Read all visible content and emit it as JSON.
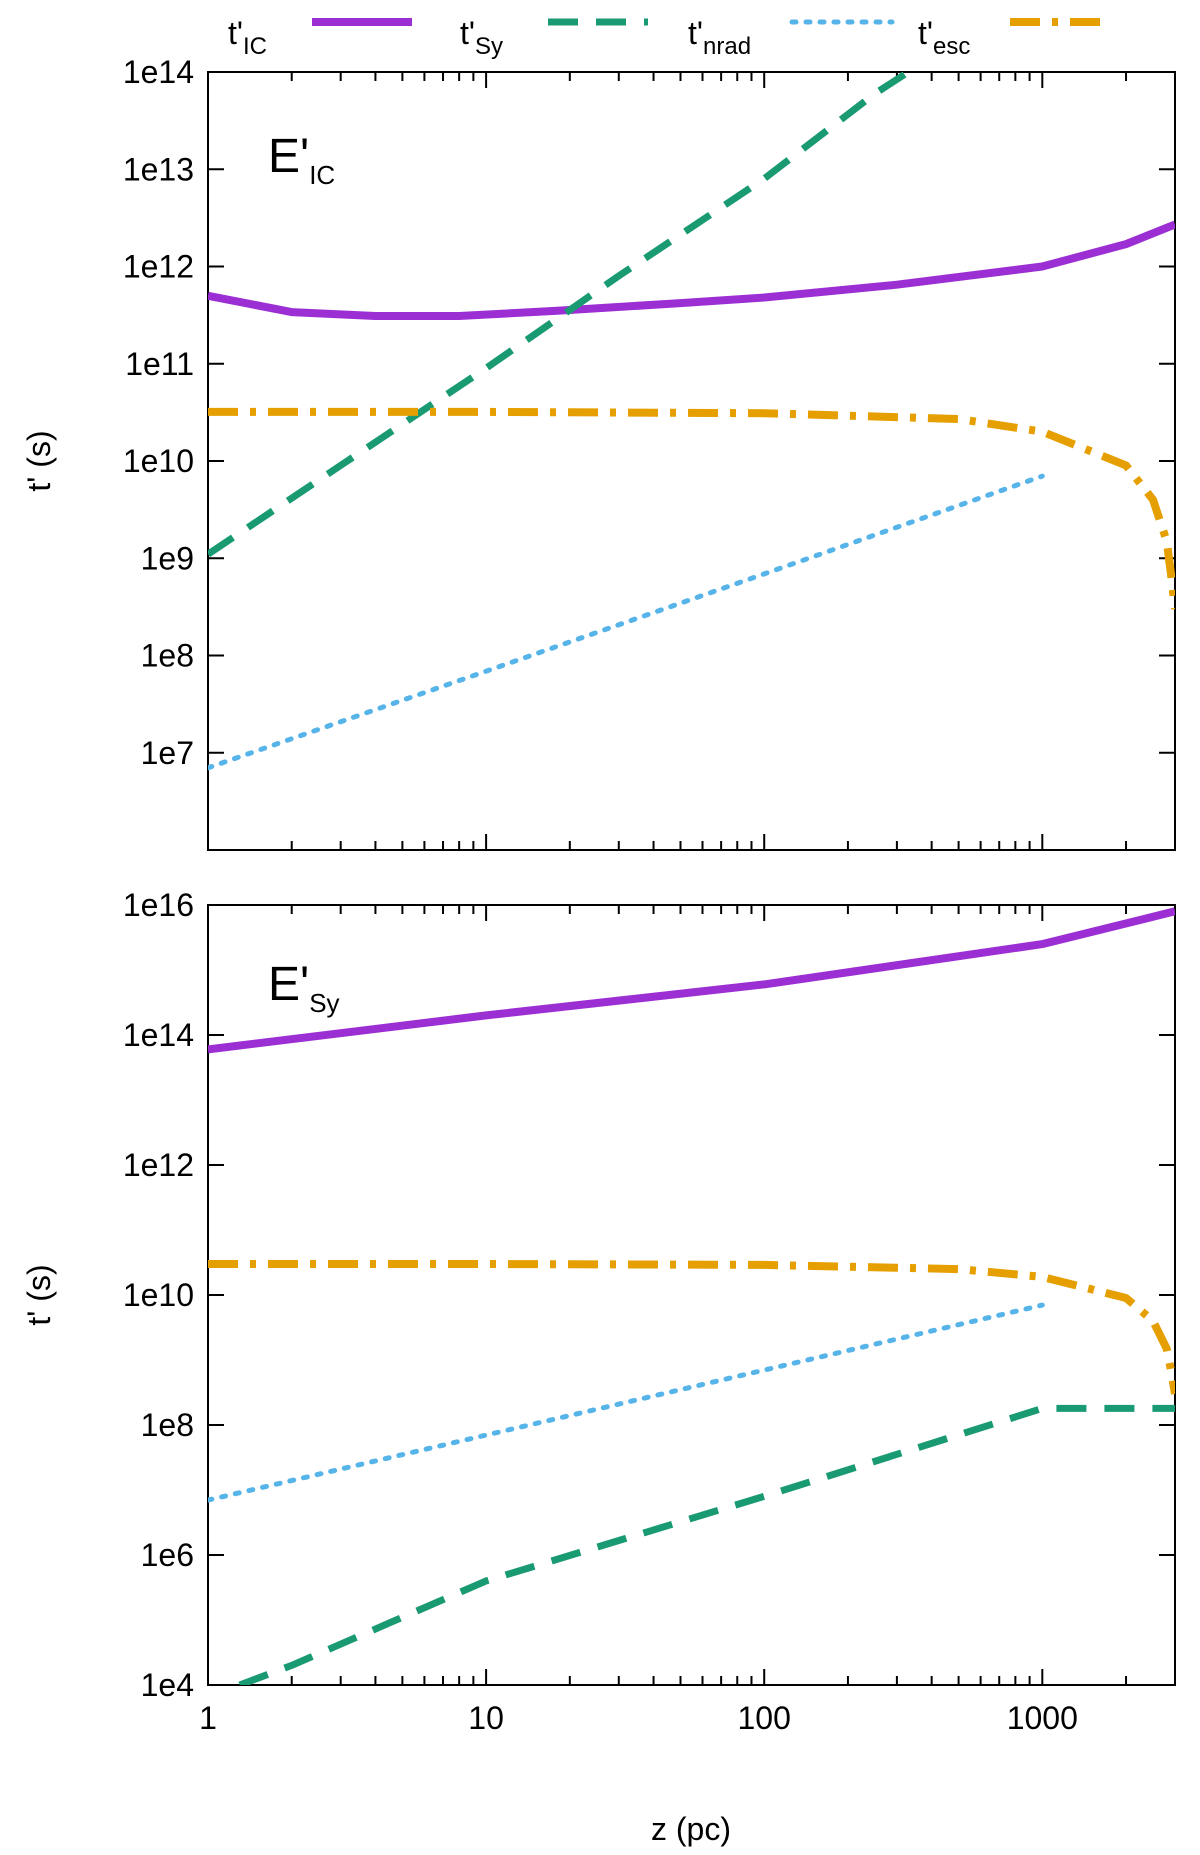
{
  "legend": {
    "placement": "top, outside plot area",
    "entries": [
      {
        "base": "t'",
        "sub": "IC",
        "style": "solid",
        "color": "#9b2fd4"
      },
      {
        "base": "t'",
        "sub": "Sy",
        "style": "dashed",
        "color": "#1a9a72"
      },
      {
        "base": "t'",
        "sub": "nrad",
        "style": "dotted",
        "color": "#56b4e9"
      },
      {
        "base": "t'",
        "sub": "esc",
        "style": "dash-dot",
        "color": "#e69f00"
      }
    ]
  },
  "colors": {
    "IC": "#9b2fd4",
    "Sy": "#1a9a72",
    "nrad": "#56b4e9",
    "esc": "#e69f00"
  },
  "chart_data": [
    {
      "type": "line",
      "panel_label": {
        "base": "E'",
        "sub": "IC"
      },
      "xlabel": "z (pc)",
      "ylabel": "t' (s)",
      "xscale": "log",
      "yscale": "log",
      "xlim": [
        1,
        3000
      ],
      "ylim": [
        1000000,
        100000000000000
      ],
      "yticks": [
        10000000,
        100000000,
        1000000000,
        10000000000,
        100000000000,
        1000000000000,
        10000000000000,
        100000000000000
      ],
      "ytick_labels": [
        "1e7",
        "1e8",
        "1e9",
        "1e10",
        "1e11",
        "1e12",
        "1e13",
        "1e14"
      ],
      "grid": false,
      "series": [
        {
          "key": "IC",
          "x": [
            1,
            2,
            4,
            8,
            18,
            50,
            100,
            300,
            1000,
            2000,
            3000
          ],
          "y": [
            500000000000,
            340000000000,
            310000000000,
            310000000000,
            350000000000,
            420000000000,
            480000000000,
            650000000000,
            1000000000000,
            1700000000000,
            2700000000000
          ]
        },
        {
          "key": "Sy",
          "x": [
            1,
            3,
            10,
            30,
            100,
            250,
            330
          ],
          "y": [
            1100000000,
            9000000000,
            90000000000,
            800000000000,
            8000000000000,
            60000000000000,
            100000000000000
          ]
        },
        {
          "key": "nrad",
          "x": [
            1,
            10,
            100,
            1000
          ],
          "y": [
            7000000,
            69000000,
            690000000,
            7000000000
          ]
        },
        {
          "key": "esc",
          "x": [
            1,
            10,
            100,
            500,
            1000,
            2000,
            2500,
            2800,
            2900,
            3000
          ],
          "y": [
            32000000000,
            32000000000,
            31000000000,
            27000000000,
            20000000000,
            9000000000,
            4000000000,
            1500000000,
            700000000,
            300000000
          ]
        }
      ]
    },
    {
      "type": "line",
      "panel_label": {
        "base": "E'",
        "sub": "Sy"
      },
      "xlabel": "z (pc)",
      "ylabel": "t' (s)",
      "xscale": "log",
      "yscale": "log",
      "xlim": [
        1,
        3000
      ],
      "xticks": [
        1,
        10,
        100,
        1000
      ],
      "xtick_labels": [
        "1",
        "10",
        "100",
        "1000"
      ],
      "ylim": [
        10000,
        10000000000000000
      ],
      "yticks": [
        10000,
        1000000,
        100000000,
        10000000000,
        1000000000000,
        100000000000000,
        10000000000000000
      ],
      "ytick_labels": [
        "1e4",
        "1e6",
        "1e8",
        "1e10",
        "1e12",
        "1e14",
        "1e16"
      ],
      "grid": false,
      "series": [
        {
          "key": "IC",
          "x": [
            1,
            10,
            100,
            1000,
            3000
          ],
          "y": [
            60000000000000,
            200000000000000,
            600000000000000,
            2500000000000000,
            8000000000000000
          ]
        },
        {
          "key": "Sy",
          "x": [
            1.3,
            2,
            10,
            100,
            1000,
            3000
          ],
          "y": [
            10000,
            20000,
            400000,
            8000000,
            180000000,
            180000000
          ]
        },
        {
          "key": "nrad",
          "x": [
            1,
            10,
            100,
            1000
          ],
          "y": [
            7000000,
            70000000,
            700000000,
            7000000000
          ]
        },
        {
          "key": "esc",
          "x": [
            1,
            10,
            100,
            500,
            1000,
            2000,
            2500,
            2800,
            2900,
            3000
          ],
          "y": [
            30000000000,
            30000000000,
            29000000000,
            25000000000,
            19000000000,
            9000000000,
            4000000000,
            1500000000,
            700000000,
            300000000
          ]
        }
      ]
    }
  ]
}
